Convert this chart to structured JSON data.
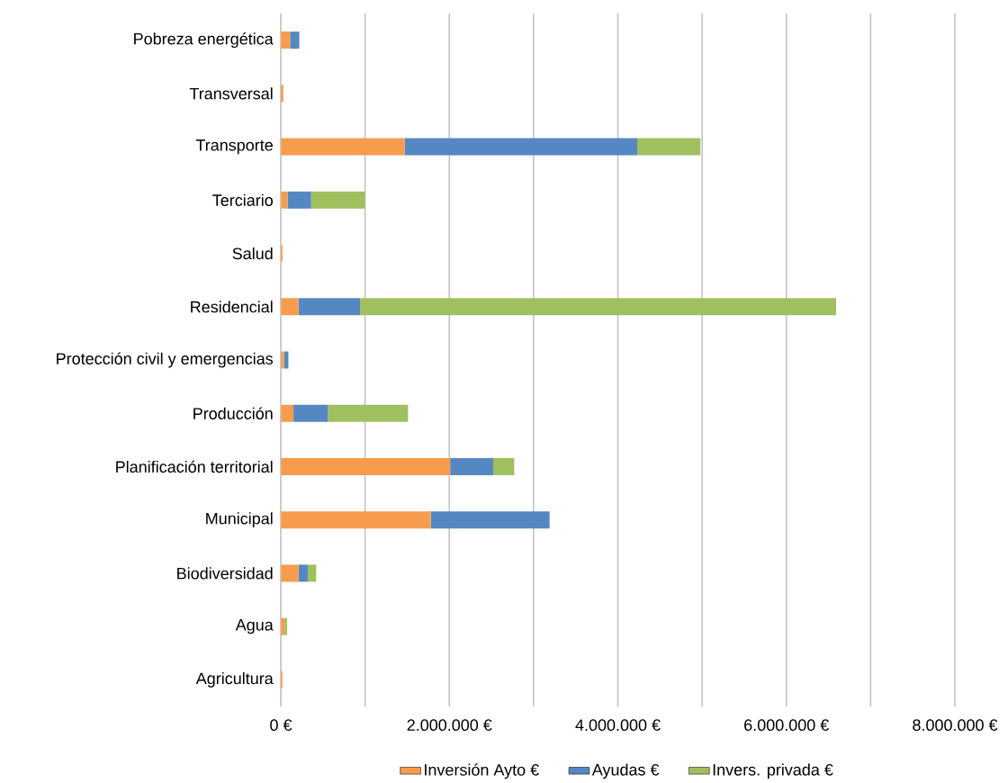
{
  "chart_data": {
    "type": "bar",
    "orientation": "horizontal",
    "stacked": true,
    "categories": [
      "Pobreza energética",
      "Transversal",
      "Transporte",
      "Terciario",
      "Salud",
      "Residencial",
      "Protección civil y emergencias",
      "Producción",
      "Planificación territorial",
      "Municipal",
      "Biodiversidad",
      "Agua",
      "Agricultura"
    ],
    "series": [
      {
        "name": "Inversión Ayto €",
        "color": "#f79c4d",
        "values": [
          110000,
          30000,
          1470000,
          80000,
          20000,
          210000,
          40000,
          150000,
          2010000,
          1780000,
          210000,
          45000,
          20000
        ]
      },
      {
        "name": "Ayudas €",
        "color": "#5588c2",
        "values": [
          110000,
          null,
          2760000,
          280000,
          null,
          730000,
          50000,
          410000,
          510000,
          1410000,
          110000,
          null,
          null
        ]
      },
      {
        "name": "Invers. privada €",
        "color": "#a0bf5e",
        "values": [
          null,
          null,
          750000,
          640000,
          null,
          5650000,
          null,
          950000,
          250000,
          null,
          100000,
          30000,
          null
        ]
      }
    ],
    "xlim": [
      0,
      8000000
    ],
    "xticks": [
      {
        "value": 0,
        "label": "0 €"
      },
      {
        "value": 1000000,
        "label": null
      },
      {
        "value": 2000000,
        "label": "2.000.000 €"
      },
      {
        "value": 3000000,
        "label": null
      },
      {
        "value": 4000000,
        "label": "4.000.000 €"
      },
      {
        "value": 5000000,
        "label": null
      },
      {
        "value": 6000000,
        "label": "6.000.000 €"
      },
      {
        "value": 7000000,
        "label": null
      },
      {
        "value": 8000000,
        "label": "8.000.000 €"
      }
    ],
    "grid": "x",
    "legend": "bottom"
  }
}
